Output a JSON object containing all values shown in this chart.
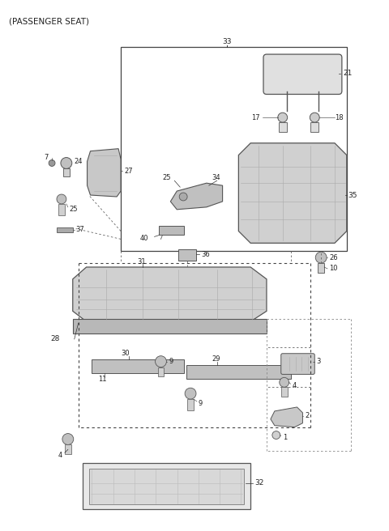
{
  "title": "(PASSENGER SEAT)",
  "bg_color": "#ffffff",
  "line_color": "#333333",
  "fig_width": 4.8,
  "fig_height": 6.56,
  "dpi": 100
}
